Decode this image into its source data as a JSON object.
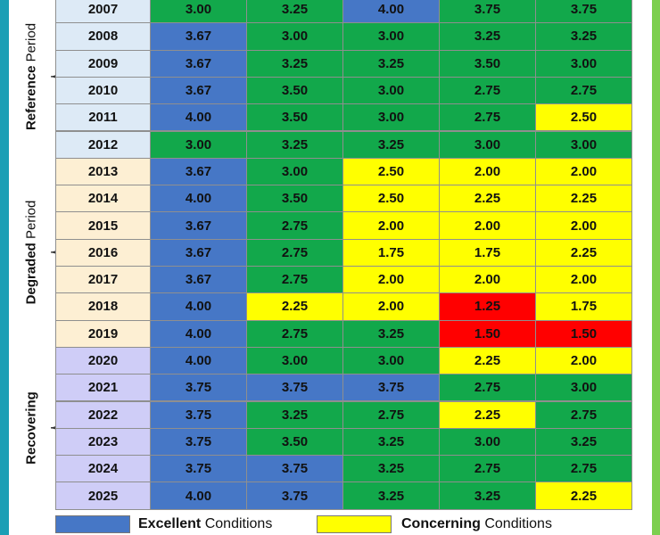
{
  "groups": [
    {
      "bold": "Reference",
      "rest": "Period",
      "rows": [
        {
          "year": "2007",
          "values": [
            "3.00",
            "3.25",
            "4.00",
            "3.75",
            "3.75"
          ],
          "colors": [
            "#12a84b",
            "#12a84b",
            "#4677c6",
            "#12a84b",
            "#12a84b"
          ]
        },
        {
          "year": "2008",
          "values": [
            "3.67",
            "3.00",
            "3.00",
            "3.25",
            "3.25"
          ],
          "colors": [
            "#4677c6",
            "#12a84b",
            "#12a84b",
            "#12a84b",
            "#12a84b"
          ]
        },
        {
          "year": "2009",
          "values": [
            "3.67",
            "3.25",
            "3.25",
            "3.50",
            "3.00"
          ],
          "colors": [
            "#4677c6",
            "#12a84b",
            "#12a84b",
            "#12a84b",
            "#12a84b"
          ]
        },
        {
          "year": "2010",
          "values": [
            "3.67",
            "3.50",
            "3.00",
            "2.75",
            "2.75"
          ],
          "colors": [
            "#4677c6",
            "#12a84b",
            "#12a84b",
            "#12a84b",
            "#12a84b"
          ]
        },
        {
          "year": "2011",
          "values": [
            "4.00",
            "3.50",
            "3.00",
            "2.75",
            "2.50"
          ],
          "colors": [
            "#4677c6",
            "#12a84b",
            "#12a84b",
            "#12a84b",
            "#ffff00"
          ]
        },
        {
          "year": "2012",
          "values": [
            "3.00",
            "3.25",
            "3.25",
            "3.00",
            "3.00"
          ],
          "colors": [
            "#12a84b",
            "#12a84b",
            "#12a84b",
            "#12a84b",
            "#12a84b"
          ]
        }
      ],
      "fill": "#ddeaf6"
    },
    {
      "bold": "Degraded",
      "rest": "Period",
      "rows": [
        {
          "year": "2013",
          "values": [
            "3.67",
            "3.00",
            "2.50",
            "2.00",
            "2.00"
          ],
          "colors": [
            "#4677c6",
            "#12a84b",
            "#ffff00",
            "#ffff00",
            "#ffff00"
          ]
        },
        {
          "year": "2014",
          "values": [
            "4.00",
            "3.50",
            "2.50",
            "2.25",
            "2.25"
          ],
          "colors": [
            "#4677c6",
            "#12a84b",
            "#ffff00",
            "#ffff00",
            "#ffff00"
          ]
        },
        {
          "year": "2015",
          "values": [
            "3.67",
            "2.75",
            "2.00",
            "2.00",
            "2.00"
          ],
          "colors": [
            "#4677c6",
            "#12a84b",
            "#ffff00",
            "#ffff00",
            "#ffff00"
          ]
        },
        {
          "year": "2016",
          "values": [
            "3.67",
            "2.75",
            "1.75",
            "1.75",
            "2.25"
          ],
          "colors": [
            "#4677c6",
            "#12a84b",
            "#ffff00",
            "#ffff00",
            "#ffff00"
          ]
        },
        {
          "year": "2017",
          "values": [
            "3.67",
            "2.75",
            "2.00",
            "2.00",
            "2.00"
          ],
          "colors": [
            "#4677c6",
            "#12a84b",
            "#ffff00",
            "#ffff00",
            "#ffff00"
          ]
        },
        {
          "year": "2018",
          "values": [
            "4.00",
            "2.25",
            "2.00",
            "1.25",
            "1.75"
          ],
          "colors": [
            "#4677c6",
            "#ffff00",
            "#ffff00",
            "#ff0000",
            "#ffff00"
          ]
        },
        {
          "year": "2019",
          "values": [
            "4.00",
            "2.75",
            "3.25",
            "1.50",
            "1.50"
          ],
          "colors": [
            "#4677c6",
            "#12a84b",
            "#12a84b",
            "#ff0000",
            "#ff0000"
          ]
        }
      ],
      "fill": "#fdefd3"
    },
    {
      "bold": "Recovering",
      "rows": [
        {
          "year": "2020",
          "values": [
            "4.00",
            "3.00",
            "3.00",
            "2.25",
            "2.00"
          ],
          "colors": [
            "#4677c6",
            "#12a84b",
            "#12a84b",
            "#ffff00",
            "#ffff00"
          ]
        },
        {
          "year": "2021",
          "values": [
            "3.75",
            "3.75",
            "3.75",
            "2.75",
            "3.00"
          ],
          "colors": [
            "#4677c6",
            "#4677c6",
            "#4677c6",
            "#12a84b",
            "#12a84b"
          ]
        },
        {
          "year": "2022",
          "values": [
            "3.75",
            "3.25",
            "2.75",
            "2.25",
            "2.75"
          ],
          "colors": [
            "#4677c6",
            "#12a84b",
            "#12a84b",
            "#ffff00",
            "#12a84b"
          ]
        },
        {
          "year": "2023",
          "values": [
            "3.75",
            "3.50",
            "3.25",
            "3.00",
            "3.25"
          ],
          "colors": [
            "#4677c6",
            "#12a84b",
            "#12a84b",
            "#12a84b",
            "#12a84b"
          ]
        },
        {
          "year": "2024",
          "values": [
            "3.75",
            "3.75",
            "3.25",
            "2.75",
            "2.75"
          ],
          "colors": [
            "#4677c6",
            "#4677c6",
            "#12a84b",
            "#12a84b",
            "#12a84b"
          ]
        },
        {
          "year": "2025",
          "values": [
            "4.00",
            "3.75",
            "3.25",
            "3.25",
            "2.25"
          ],
          "colors": [
            "#4677c6",
            "#4677c6",
            "#12a84b",
            "#12a84b",
            "#ffff00"
          ]
        }
      ],
      "fill": "#cfcdf7"
    }
  ],
  "legend": [
    {
      "bold": "Excellent",
      "rest": "Conditions",
      "color": "#4677c6"
    },
    {
      "bold": "Concerning",
      "rest": "Conditions",
      "color": "#ffff00"
    }
  ]
}
